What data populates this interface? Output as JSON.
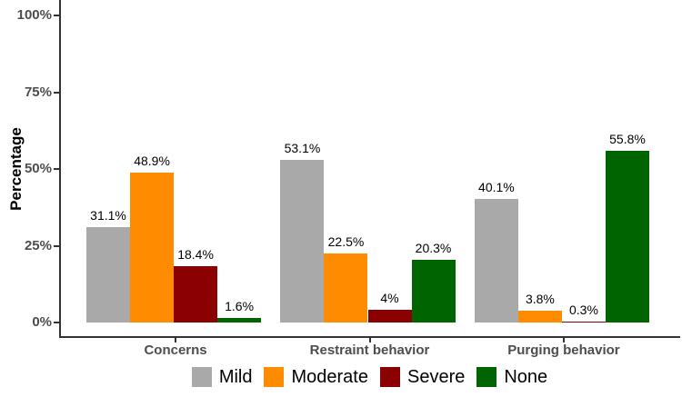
{
  "chart_data": {
    "type": "bar",
    "title": "",
    "xlabel": "",
    "ylabel": "Percentage",
    "ylim": [
      0,
      100
    ],
    "grid": false,
    "legend_position": "bottom",
    "yticks": [
      {
        "value": 0,
        "label": "0%"
      },
      {
        "value": 25,
        "label": "25%"
      },
      {
        "value": 50,
        "label": "50%"
      },
      {
        "value": 75,
        "label": "75%"
      },
      {
        "value": 100,
        "label": "100%"
      }
    ],
    "categories": [
      "Concerns",
      "Restraint behavior",
      "Purging behavior"
    ],
    "series": [
      {
        "name": "Mild",
        "color": "#A9A9A9",
        "values": [
          31.1,
          53.1,
          40.1
        ],
        "labels": [
          "31.1%",
          "53.1%",
          "40.1%"
        ]
      },
      {
        "name": "Moderate",
        "color": "#FF8C00",
        "values": [
          48.9,
          22.5,
          3.8
        ],
        "labels": [
          "48.9%",
          "22.5%",
          "3.8%"
        ]
      },
      {
        "name": "Severe",
        "color": "#8B0000",
        "values": [
          18.4,
          4.0,
          0.3
        ],
        "labels": [
          "18.4%",
          "4%",
          "0.3%"
        ]
      },
      {
        "name": "None",
        "color": "#006400",
        "values": [
          1.6,
          20.3,
          55.8
        ],
        "labels": [
          "1.6%",
          "20.3%",
          "55.8%"
        ]
      }
    ],
    "legend_entries": [
      "Mild",
      "Moderate",
      "Severe",
      "None"
    ],
    "colors": {
      "axis_line": "#333333",
      "axis_text": "#4d4d4d",
      "value_label": "#000000",
      "background": "#ffffff"
    }
  }
}
